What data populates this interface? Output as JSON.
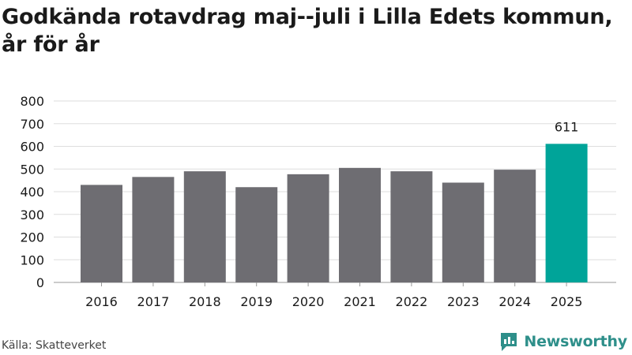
{
  "chart_data": {
    "type": "bar",
    "title": "Godkända rotavdrag maj--juli i Lilla Edets kommun, år för år",
    "categories": [
      "2016",
      "2017",
      "2018",
      "2019",
      "2020",
      "2021",
      "2022",
      "2023",
      "2024",
      "2025"
    ],
    "values": [
      430,
      465,
      490,
      420,
      477,
      505,
      490,
      440,
      497,
      611
    ],
    "data_labels": [
      {
        "category": "2025",
        "label": "611"
      }
    ],
    "y_ticks": [
      "0",
      "100",
      "200",
      "300",
      "400",
      "500",
      "600",
      "700",
      "800"
    ],
    "ylim": [
      0,
      800
    ],
    "grid": true,
    "colors": {
      "default_bar": "#6e6d72",
      "highlight_bar": "#00a499",
      "grid": "#dddddd"
    },
    "highlight_category": "2025"
  },
  "footer": {
    "source": "Källa: Skatteverket",
    "brand": "Newsworthy",
    "brand_icon": "newsworthy-logo-icon"
  }
}
